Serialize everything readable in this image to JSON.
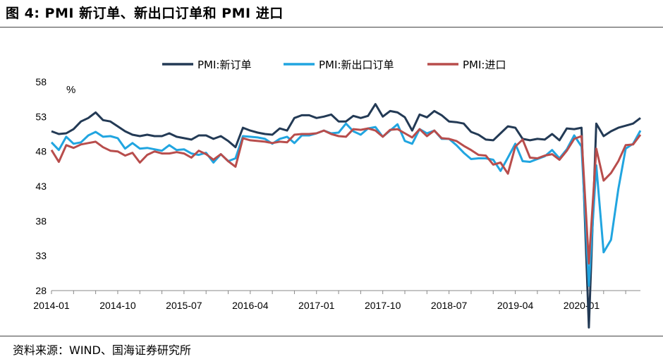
{
  "header": {
    "title": "图 4:    PMI 新订单、新出口订单和 PMI 进口"
  },
  "footer": {
    "source": "资料来源：WIND、国海证券研究所"
  },
  "chart_data": {
    "type": "line",
    "unit": "%",
    "ylim": [
      28,
      58
    ],
    "yticks": [
      28,
      33,
      38,
      43,
      48,
      53,
      58
    ],
    "xtick_labels": [
      "2014-01",
      "2014-10",
      "2015-07",
      "2016-04",
      "2017-01",
      "2017-10",
      "2018-07",
      "2019-04",
      "2020-01"
    ],
    "legend_position": "top-center",
    "grid": false,
    "series": [
      {
        "name": "PMI:新订单",
        "color": "#233a55",
        "values": [
          50.9,
          50.5,
          50.6,
          51.2,
          52.3,
          52.8,
          53.6,
          52.5,
          52.3,
          51.6,
          50.9,
          50.4,
          50.2,
          50.4,
          50.2,
          50.2,
          50.6,
          50.1,
          49.9,
          49.7,
          50.3,
          50.3,
          49.8,
          50.2,
          49.5,
          48.6,
          51.4,
          51.0,
          50.7,
          50.5,
          50.4,
          51.3,
          51.0,
          52.8,
          53.2,
          53.2,
          52.8,
          53.0,
          53.3,
          52.3,
          52.3,
          53.1,
          52.8,
          53.1,
          54.8,
          53.0,
          53.8,
          53.6,
          52.9,
          51.0,
          53.3,
          52.9,
          53.8,
          53.2,
          52.3,
          52.2,
          52.0,
          50.8,
          50.4,
          49.7,
          49.6,
          50.6,
          51.6,
          51.4,
          49.8,
          49.6,
          49.8,
          49.7,
          50.5,
          49.6,
          51.3,
          51.2,
          51.4,
          22.7,
          52.0,
          50.2,
          50.9,
          51.4,
          51.7,
          52.0,
          52.8
        ],
        "value_labels": []
      },
      {
        "name": "PMI:新出口订单",
        "color": "#21a5e0",
        "values": [
          49.3,
          48.2,
          50.1,
          49.1,
          49.3,
          50.3,
          50.8,
          50.1,
          50.2,
          49.9,
          48.4,
          49.2,
          48.4,
          48.5,
          48.3,
          48.1,
          48.9,
          48.2,
          48.3,
          47.7,
          47.5,
          47.8,
          46.4,
          47.6,
          46.6,
          47.0,
          50.2,
          50.1,
          50.0,
          49.8,
          49.1,
          49.8,
          50.1,
          49.2,
          50.3,
          50.3,
          50.6,
          51.0,
          50.6,
          50.7,
          52.0,
          50.9,
          50.4,
          51.3,
          51.5,
          50.1,
          51.0,
          51.9,
          49.5,
          49.1,
          51.2,
          50.6,
          51.0,
          49.8,
          49.8,
          48.9,
          47.8,
          46.9,
          47.0,
          47.0,
          46.8,
          45.2,
          47.1,
          49.1,
          46.6,
          46.5,
          46.9,
          47.3,
          48.2,
          47.0,
          48.3,
          50.3,
          48.7,
          28.7,
          46.0,
          33.5,
          35.3,
          42.6,
          48.4,
          49.1,
          51.0
        ],
        "value_labels": []
      },
      {
        "name": "PMI:进口",
        "color": "#b84d4c",
        "values": [
          48.2,
          46.5,
          48.9,
          48.5,
          49.0,
          49.2,
          49.4,
          48.6,
          48.1,
          48.0,
          47.4,
          47.8,
          46.4,
          47.5,
          48.0,
          47.7,
          47.7,
          47.9,
          47.7,
          47.1,
          48.1,
          47.6,
          46.8,
          47.6,
          46.6,
          45.8,
          49.9,
          49.6,
          49.5,
          49.4,
          49.2,
          49.4,
          49.3,
          50.4,
          50.5,
          50.5,
          50.6,
          51.0,
          50.5,
          50.2,
          50.1,
          51.2,
          51.1,
          51.3,
          51.0,
          50.1,
          51.1,
          51.2,
          50.6,
          50.0,
          51.2,
          50.2,
          51.0,
          49.9,
          49.8,
          49.5,
          48.8,
          48.2,
          47.5,
          47.4,
          46.1,
          46.4,
          44.8,
          48.7,
          49.7,
          47.1,
          47.0,
          47.4,
          47.6,
          46.8,
          48.1,
          49.8,
          50.2,
          31.9,
          48.4,
          43.8,
          44.9,
          46.6,
          48.9,
          49.0,
          50.4
        ],
        "value_labels": []
      }
    ]
  }
}
